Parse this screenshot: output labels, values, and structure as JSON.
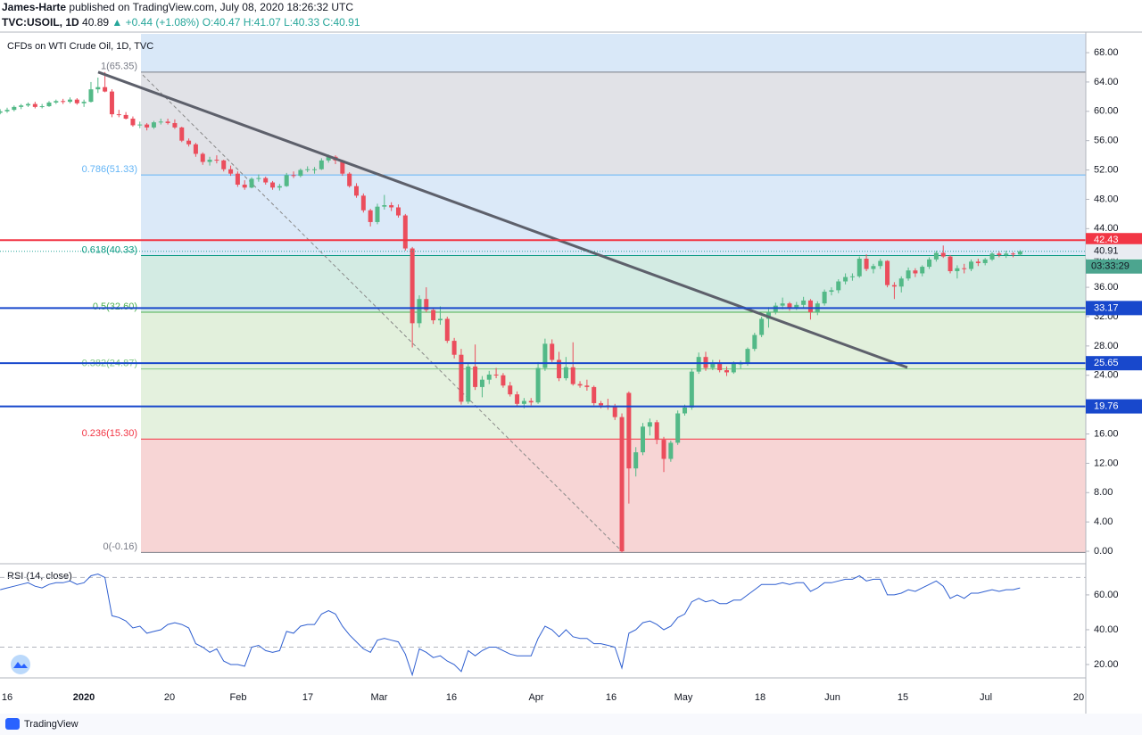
{
  "header": {
    "author": "James-Harte",
    "published": "published on TradingView.com, July 08, 2020 18:26:32 UTC",
    "symbol": "TVC:USOIL, 1D",
    "last": "40.89",
    "arrow": "▲",
    "change": "+0.44 (+1.08%)",
    "ohlc": "O:40.47 H:41.07 L:40.33 C:40.91"
  },
  "chart_data": {
    "type": "candlestick",
    "title": "CFDs on WTI Crude Oil, 1D, TVC",
    "up_color": "#53b987",
    "down_color": "#eb4d5c",
    "background": "#d9e8f8",
    "x_labels": [
      "16",
      "2020",
      "20",
      "Feb",
      "17",
      "Mar",
      "16",
      "Apr",
      "16",
      "May",
      "18",
      "Jun",
      "15",
      "Jul",
      "20"
    ],
    "ylim": [
      -1.7,
      70.56
    ],
    "yticks": [
      {
        "value": 0,
        "label": "0.00"
      },
      {
        "value": 4,
        "label": "4.00"
      },
      {
        "value": 8,
        "label": "8.00"
      },
      {
        "value": 12,
        "label": "12.00"
      },
      {
        "value": 16,
        "label": "16.00"
      },
      {
        "value": 20,
        "label": "20.00"
      },
      {
        "value": 24,
        "label": "24.00"
      },
      {
        "value": 28,
        "label": "28.00"
      },
      {
        "value": 32,
        "label": "32.00"
      },
      {
        "value": 36,
        "label": "36.00"
      },
      {
        "value": 40,
        "label": "40.00"
      },
      {
        "value": 44,
        "label": "44.00"
      },
      {
        "value": 48,
        "label": "48.00"
      },
      {
        "value": 52,
        "label": "52.00"
      },
      {
        "value": 56,
        "label": "56.00"
      },
      {
        "value": 60,
        "label": "60.00"
      },
      {
        "value": 64,
        "label": "64.00"
      },
      {
        "value": 68,
        "label": "68.00"
      }
    ],
    "fib_levels": [
      {
        "value": 65.35,
        "label": "1(65.35)",
        "color": "#787b86",
        "fill": "#e1e2e7"
      },
      {
        "value": 51.33,
        "label": "0.786(51.33)",
        "color": "#64b5f6",
        "fill": "#dbe9f8"
      },
      {
        "value": 40.33,
        "label": "0.618(40.33)",
        "color": "#089981",
        "fill": "#d3ebe3"
      },
      {
        "value": 32.6,
        "label": "0.5(32.60)",
        "color": "#4caf50",
        "fill": "#e2f0dc"
      },
      {
        "value": 24.87,
        "label": "0.382(24.87)",
        "color": "#81c784",
        "fill": "#e4f1de"
      },
      {
        "value": 15.3,
        "label": "0.236(15.30)",
        "color": "#f23645",
        "fill": "#f7d5d5"
      },
      {
        "value": -0.16,
        "label": "0(-0.16)",
        "color": "#787b86"
      }
    ],
    "horizontal_lines": [
      {
        "value": 42.43,
        "color": "#f23645"
      },
      {
        "value": 33.17,
        "color": "#1848cc"
      },
      {
        "value": 25.65,
        "color": "#1848cc"
      },
      {
        "value": 19.76,
        "color": "#1848cc"
      }
    ],
    "price_line": 40.91,
    "countdown": "03:33:29",
    "candles": [
      [
        59.8,
        60.3,
        59.6,
        60.0
      ],
      [
        60.0,
        60.5,
        59.8,
        60.2
      ],
      [
        60.2,
        60.8,
        60.0,
        60.6
      ],
      [
        60.6,
        61.0,
        60.3,
        60.8
      ],
      [
        60.8,
        61.2,
        60.6,
        61.0
      ],
      [
        61.0,
        61.3,
        60.4,
        60.6
      ],
      [
        60.6,
        61.0,
        60.4,
        60.7
      ],
      [
        60.7,
        61.4,
        60.6,
        61.2
      ],
      [
        61.2,
        61.6,
        61.0,
        61.4
      ],
      [
        61.4,
        61.7,
        61.0,
        61.3
      ],
      [
        61.3,
        61.9,
        61.1,
        61.6
      ],
      [
        61.6,
        61.8,
        60.9,
        61.1
      ],
      [
        61.1,
        61.6,
        60.6,
        61.3
      ],
      [
        61.3,
        64.0,
        61.2,
        63.0
      ],
      [
        63.0,
        64.6,
        62.5,
        63.3
      ],
      [
        63.3,
        65.35,
        62.6,
        62.7
      ],
      [
        62.7,
        63.0,
        59.2,
        59.6
      ],
      [
        59.6,
        60.2,
        59.2,
        59.5
      ],
      [
        59.5,
        59.9,
        58.9,
        59.0
      ],
      [
        59.0,
        59.3,
        57.9,
        58.1
      ],
      [
        58.1,
        58.6,
        57.7,
        58.2
      ],
      [
        58.2,
        58.4,
        57.4,
        57.8
      ],
      [
        57.8,
        58.7,
        57.6,
        58.5
      ],
      [
        58.5,
        59.0,
        58.2,
        58.6
      ],
      [
        58.6,
        59.0,
        58.2,
        58.4
      ],
      [
        58.4,
        58.9,
        57.6,
        57.8
      ],
      [
        57.8,
        57.9,
        55.8,
        56.0
      ],
      [
        56.0,
        56.3,
        55.2,
        55.5
      ],
      [
        55.5,
        55.7,
        53.8,
        54.2
      ],
      [
        54.2,
        54.4,
        52.7,
        53.1
      ],
      [
        53.1,
        53.8,
        52.6,
        53.4
      ],
      [
        53.4,
        54.0,
        52.9,
        53.3
      ],
      [
        53.3,
        53.4,
        51.8,
        52.1
      ],
      [
        52.1,
        52.6,
        51.2,
        51.5
      ],
      [
        51.5,
        51.8,
        49.7,
        50.0
      ],
      [
        50.0,
        50.6,
        49.3,
        49.6
      ],
      [
        49.6,
        51.0,
        49.5,
        50.8
      ],
      [
        50.8,
        51.4,
        50.4,
        50.9
      ],
      [
        50.9,
        51.1,
        50.0,
        50.3
      ],
      [
        50.3,
        50.5,
        49.3,
        49.6
      ],
      [
        49.6,
        50.1,
        49.2,
        49.8
      ],
      [
        49.8,
        51.6,
        49.7,
        51.3
      ],
      [
        51.3,
        51.8,
        50.9,
        51.2
      ],
      [
        51.2,
        52.2,
        51.0,
        52.0
      ],
      [
        52.0,
        52.5,
        51.7,
        52.1
      ],
      [
        52.1,
        52.4,
        51.5,
        52.1
      ],
      [
        52.1,
        53.6,
        52.0,
        53.3
      ],
      [
        53.3,
        54.1,
        53.0,
        53.8
      ],
      [
        53.8,
        54.0,
        52.8,
        53.3
      ],
      [
        53.3,
        53.4,
        51.2,
        51.5
      ],
      [
        51.5,
        51.7,
        49.6,
        49.8
      ],
      [
        49.8,
        50.2,
        48.2,
        48.5
      ],
      [
        48.5,
        48.8,
        46.2,
        46.5
      ],
      [
        46.5,
        46.7,
        44.3,
        44.9
      ],
      [
        44.9,
        47.4,
        44.6,
        47.0
      ],
      [
        47.0,
        48.6,
        46.6,
        47.2
      ],
      [
        47.2,
        47.6,
        46.4,
        46.9
      ],
      [
        46.9,
        47.3,
        45.5,
        45.8
      ],
      [
        45.8,
        46.0,
        41.0,
        41.3
      ],
      [
        41.3,
        41.5,
        27.8,
        31.1
      ],
      [
        31.1,
        34.9,
        30.5,
        34.4
      ],
      [
        34.4,
        36.0,
        32.6,
        32.9
      ],
      [
        32.9,
        33.2,
        31.0,
        31.5
      ],
      [
        31.5,
        33.4,
        30.9,
        31.7
      ],
      [
        31.7,
        32.0,
        28.4,
        28.7
      ],
      [
        28.7,
        29.1,
        26.3,
        26.8
      ],
      [
        26.8,
        27.6,
        20.0,
        20.4
      ],
      [
        20.4,
        25.6,
        20.1,
        25.2
      ],
      [
        25.2,
        28.2,
        22.0,
        22.4
      ],
      [
        22.4,
        23.9,
        21.0,
        23.4
      ],
      [
        23.4,
        24.6,
        22.8,
        24.1
      ],
      [
        24.1,
        25.0,
        23.6,
        24.0
      ],
      [
        24.0,
        24.3,
        22.3,
        22.6
      ],
      [
        22.6,
        23.1,
        21.1,
        21.4
      ],
      [
        21.4,
        21.8,
        19.8,
        20.1
      ],
      [
        20.1,
        20.9,
        19.5,
        20.5
      ],
      [
        20.5,
        20.9,
        19.9,
        20.3
      ],
      [
        20.3,
        25.8,
        20.1,
        25.0
      ],
      [
        25.0,
        29.0,
        24.6,
        28.3
      ],
      [
        28.3,
        28.9,
        25.8,
        26.1
      ],
      [
        26.1,
        27.2,
        23.2,
        23.6
      ],
      [
        23.6,
        26.5,
        23.3,
        25.1
      ],
      [
        25.1,
        28.5,
        22.6,
        22.8
      ],
      [
        22.8,
        23.2,
        22.3,
        22.6
      ],
      [
        22.6,
        23.4,
        21.9,
        22.4
      ],
      [
        22.4,
        22.6,
        19.9,
        20.2
      ],
      [
        20.2,
        20.5,
        19.5,
        19.9
      ],
      [
        19.9,
        20.8,
        19.3,
        19.8
      ],
      [
        19.8,
        20.1,
        17.9,
        18.3
      ],
      [
        18.3,
        18.8,
        -0.16,
        0.0
      ],
      [
        21.6,
        21.8,
        6.5,
        11.3
      ],
      [
        11.3,
        14.2,
        10.2,
        13.5
      ],
      [
        13.5,
        17.5,
        13.1,
        17.0
      ],
      [
        17.0,
        18.1,
        15.8,
        17.6
      ],
      [
        17.6,
        17.9,
        14.6,
        15.2
      ],
      [
        15.2,
        15.6,
        10.8,
        12.6
      ],
      [
        12.6,
        15.1,
        12.2,
        14.8
      ],
      [
        14.8,
        19.2,
        14.5,
        18.8
      ],
      [
        18.8,
        20.0,
        18.5,
        19.6
      ],
      [
        19.6,
        24.9,
        19.3,
        24.5
      ],
      [
        24.5,
        27.1,
        24.2,
        26.5
      ],
      [
        26.5,
        27.2,
        24.6,
        25.0
      ],
      [
        25.0,
        26.1,
        24.7,
        25.7
      ],
      [
        25.7,
        26.1,
        24.4,
        24.7
      ],
      [
        24.7,
        25.2,
        23.9,
        24.4
      ],
      [
        24.4,
        25.9,
        24.2,
        25.6
      ],
      [
        25.6,
        26.0,
        24.9,
        25.6
      ],
      [
        25.6,
        27.8,
        25.3,
        27.6
      ],
      [
        27.6,
        29.8,
        27.3,
        29.5
      ],
      [
        29.5,
        32.0,
        29.2,
        31.7
      ],
      [
        31.7,
        33.3,
        30.5,
        32.6
      ],
      [
        32.6,
        33.9,
        32.3,
        33.5
      ],
      [
        33.5,
        34.6,
        33.0,
        33.8
      ],
      [
        33.8,
        34.0,
        32.8,
        33.2
      ],
      [
        33.2,
        34.0,
        32.9,
        33.6
      ],
      [
        33.6,
        34.7,
        33.2,
        34.2
      ],
      [
        34.2,
        34.4,
        31.6,
        32.6
      ],
      [
        32.6,
        34.1,
        32.2,
        33.8
      ],
      [
        33.8,
        35.7,
        33.5,
        35.4
      ],
      [
        35.4,
        36.0,
        34.9,
        35.6
      ],
      [
        35.6,
        37.1,
        35.2,
        36.8
      ],
      [
        36.8,
        37.9,
        36.4,
        37.4
      ],
      [
        37.4,
        37.9,
        36.9,
        37.5
      ],
      [
        37.5,
        40.2,
        37.3,
        39.9
      ],
      [
        39.9,
        40.5,
        38.2,
        38.5
      ],
      [
        38.5,
        39.2,
        37.9,
        38.9
      ],
      [
        38.9,
        39.9,
        38.5,
        39.6
      ],
      [
        39.6,
        39.7,
        36.0,
        36.3
      ],
      [
        36.3,
        36.7,
        34.4,
        36.1
      ],
      [
        36.1,
        37.5,
        35.3,
        37.2
      ],
      [
        37.2,
        38.7,
        36.9,
        38.3
      ],
      [
        38.3,
        38.6,
        37.4,
        37.9
      ],
      [
        37.9,
        39.0,
        37.5,
        38.8
      ],
      [
        38.8,
        40.1,
        38.5,
        39.8
      ],
      [
        39.8,
        41.0,
        39.5,
        40.7
      ],
      [
        40.7,
        41.7,
        40.0,
        40.2
      ],
      [
        40.2,
        40.4,
        37.9,
        38.2
      ],
      [
        38.2,
        39.0,
        37.2,
        38.6
      ],
      [
        38.6,
        39.2,
        37.9,
        38.5
      ],
      [
        38.5,
        39.8,
        38.2,
        39.5
      ],
      [
        39.5,
        39.9,
        38.9,
        39.3
      ],
      [
        39.3,
        40.0,
        39.0,
        39.8
      ],
      [
        39.8,
        40.8,
        39.6,
        40.6
      ],
      [
        40.6,
        40.9,
        40.1,
        40.4
      ],
      [
        40.4,
        41.0,
        40.0,
        40.6
      ],
      [
        40.6,
        40.8,
        40.1,
        40.5
      ],
      [
        40.47,
        41.07,
        40.33,
        40.91
      ]
    ],
    "rsi": {
      "title": "RSI (14, close)",
      "color": "#2f5fd0",
      "ylim": [
        12.3,
        77.9
      ],
      "bands": [
        30,
        70
      ],
      "yticks": [
        {
          "value": 20,
          "label": "20.00"
        },
        {
          "value": 40,
          "label": "40.00"
        },
        {
          "value": 60,
          "label": "60.00"
        }
      ],
      "values": [
        63,
        64,
        65,
        66,
        67,
        65,
        64,
        66,
        67,
        67,
        68,
        66,
        67,
        71,
        72,
        70,
        48,
        47,
        45,
        41,
        42,
        38,
        39,
        40,
        43,
        44,
        43,
        41,
        32,
        30,
        27,
        29,
        22,
        20,
        20,
        19,
        30,
        31,
        28,
        27,
        28,
        39,
        38,
        42,
        43,
        43,
        49,
        51,
        49,
        42,
        37,
        33,
        29,
        27,
        34,
        35,
        34,
        33,
        26,
        14,
        29,
        27,
        24,
        25,
        22,
        20,
        16,
        28,
        25,
        28,
        30,
        30,
        28,
        26,
        25,
        25,
        25,
        35,
        42,
        40,
        36,
        40,
        36,
        35,
        35,
        32,
        32,
        31,
        30,
        18,
        38,
        40,
        44,
        45,
        43,
        40,
        42,
        47,
        49,
        56,
        58,
        56,
        57,
        55,
        55,
        57,
        57,
        60,
        63,
        66,
        66,
        66,
        67,
        66,
        67,
        67,
        62,
        64,
        67,
        67,
        68,
        69,
        69,
        71,
        68,
        69,
        69,
        60,
        60,
        61,
        63,
        62,
        64,
        66,
        68,
        65,
        58,
        60,
        58,
        61,
        61,
        62,
        63,
        62,
        63,
        63,
        64
      ]
    }
  },
  "footer": {
    "brand": "TradingView"
  }
}
